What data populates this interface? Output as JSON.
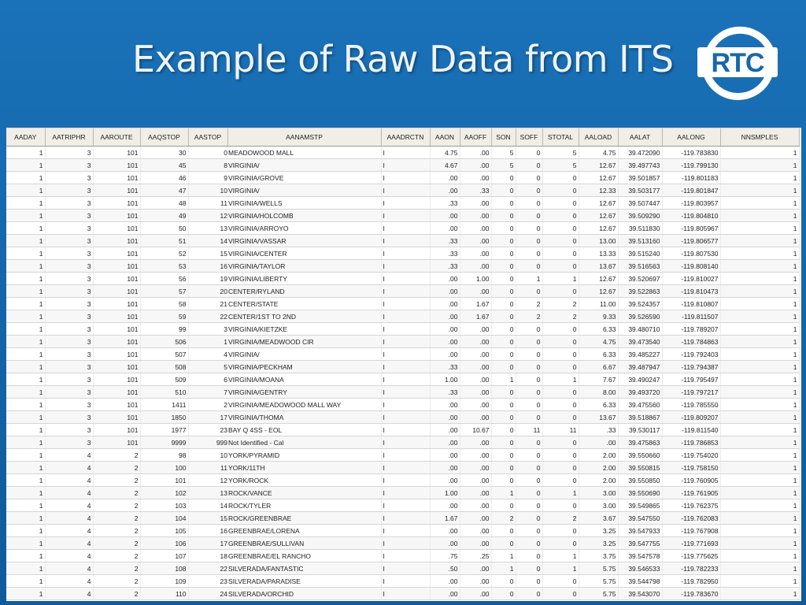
{
  "slide": {
    "title": "Example of Raw Data from ITS",
    "logo_text": "RTC",
    "colors": {
      "background": "#1668ad",
      "title_text": "#eef3f8",
      "header_fill": "#f0eee6",
      "logo": "#ffffff"
    }
  },
  "table": {
    "columns": [
      "AADAY",
      "AATRIPHR",
      "AAROUTE",
      "AAQSTOP",
      "AASTOP",
      "AANAMSTP",
      "AAADRCTN",
      "AAON",
      "AAOFF",
      "SON",
      "SOFF",
      "STOTAL",
      "AALOAD",
      "AALAT",
      "AALONG",
      "NNSMPLES"
    ],
    "rows": [
      [
        "1",
        "3",
        "101",
        "30",
        "0",
        "MEADOWOOD MALL",
        "I",
        "4.75",
        ".00",
        "5",
        "0",
        "5",
        "4.75",
        "39.472090",
        "-119.783830",
        "1"
      ],
      [
        "1",
        "3",
        "101",
        "45",
        "8",
        "VIRGINIA/",
        "I",
        "4.67",
        ".00",
        "5",
        "0",
        "5",
        "12.67",
        "39.497743",
        "-119.799130",
        "1"
      ],
      [
        "1",
        "3",
        "101",
        "46",
        "9",
        "VIRGINIA/GROVE",
        "I",
        ".00",
        ".00",
        "0",
        "0",
        "0",
        "12.67",
        "39.501857",
        "-119.801183",
        "1"
      ],
      [
        "1",
        "3",
        "101",
        "47",
        "10",
        "VIRGINIA/",
        "I",
        ".00",
        ".33",
        "0",
        "0",
        "0",
        "12.33",
        "39.503177",
        "-119.801847",
        "1"
      ],
      [
        "1",
        "3",
        "101",
        "48",
        "11",
        "VIRGINIA/WELLS",
        "I",
        ".33",
        ".00",
        "0",
        "0",
        "0",
        "12.67",
        "39.507447",
        "-119.803957",
        "1"
      ],
      [
        "1",
        "3",
        "101",
        "49",
        "12",
        "VIRGINIA/HOLCOMB",
        "I",
        ".00",
        ".00",
        "0",
        "0",
        "0",
        "12.67",
        "39.509290",
        "-119.804810",
        "1"
      ],
      [
        "1",
        "3",
        "101",
        "50",
        "13",
        "VIRGINIA/ARROYO",
        "I",
        ".00",
        ".00",
        "0",
        "0",
        "0",
        "12.67",
        "39.511830",
        "-119.805967",
        "1"
      ],
      [
        "1",
        "3",
        "101",
        "51",
        "14",
        "VIRGINIA/VASSAR",
        "I",
        ".33",
        ".00",
        "0",
        "0",
        "0",
        "13.00",
        "39.513160",
        "-119.806577",
        "1"
      ],
      [
        "1",
        "3",
        "101",
        "52",
        "15",
        "VIRGINIA/CENTER",
        "I",
        ".33",
        ".00",
        "0",
        "0",
        "0",
        "13.33",
        "39.515240",
        "-119.807530",
        "1"
      ],
      [
        "1",
        "3",
        "101",
        "53",
        "16",
        "VIRGINIA/TAYLOR",
        "I",
        ".33",
        ".00",
        "0",
        "0",
        "0",
        "13.67",
        "39.516563",
        "-119.808140",
        "1"
      ],
      [
        "1",
        "3",
        "101",
        "56",
        "19",
        "VIRGINIA/LIBERTY",
        "I",
        ".00",
        "1.00",
        "0",
        "1",
        "1",
        "12.67",
        "39.520697",
        "-119.810027",
        "1"
      ],
      [
        "1",
        "3",
        "101",
        "57",
        "20",
        "CENTER/RYLAND",
        "I",
        ".00",
        ".00",
        "0",
        "0",
        "0",
        "12.67",
        "39.522863",
        "-119.810473",
        "1"
      ],
      [
        "1",
        "3",
        "101",
        "58",
        "21",
        "CENTER/STATE",
        "I",
        ".00",
        "1.67",
        "0",
        "2",
        "2",
        "11.00",
        "39.524357",
        "-119.810807",
        "1"
      ],
      [
        "1",
        "3",
        "101",
        "59",
        "22",
        "CENTER/1ST TO 2ND",
        "I",
        ".00",
        "1.67",
        "0",
        "2",
        "2",
        "9.33",
        "39.526590",
        "-119.811507",
        "1"
      ],
      [
        "1",
        "3",
        "101",
        "99",
        "3",
        "VIRGINIA/KIETZKE",
        "I",
        ".00",
        ".00",
        "0",
        "0",
        "0",
        "6.33",
        "39.480710",
        "-119.789207",
        "1"
      ],
      [
        "1",
        "3",
        "101",
        "506",
        "1",
        "VIRGINIA/MEADWOOD CIR",
        "I",
        ".00",
        ".00",
        "0",
        "0",
        "0",
        "4.75",
        "39.473540",
        "-119.784863",
        "1"
      ],
      [
        "1",
        "3",
        "101",
        "507",
        "4",
        "VIRGINIA/",
        "I",
        ".00",
        ".00",
        "0",
        "0",
        "0",
        "6.33",
        "39.485227",
        "-119.792403",
        "1"
      ],
      [
        "1",
        "3",
        "101",
        "508",
        "5",
        "VIRGINIA/PECKHAM",
        "I",
        ".33",
        ".00",
        "0",
        "0",
        "0",
        "6.67",
        "39.487947",
        "-119.794387",
        "1"
      ],
      [
        "1",
        "3",
        "101",
        "509",
        "6",
        "VIRGINIA/MOANA",
        "I",
        "1.00",
        ".00",
        "1",
        "0",
        "1",
        "7.67",
        "39.490247",
        "-119.795497",
        "1"
      ],
      [
        "1",
        "3",
        "101",
        "510",
        "7",
        "VIRGINIA/GENTRY",
        "I",
        ".33",
        ".00",
        "0",
        "0",
        "0",
        "8.00",
        "39.493720",
        "-119.797217",
        "1"
      ],
      [
        "1",
        "3",
        "101",
        "1411",
        "2",
        "VIRGINIA/MEADOWOOD MALL WAY",
        "I",
        ".00",
        ".00",
        "0",
        "0",
        "0",
        "6.33",
        "39.475560",
        "-119.785550",
        "1"
      ],
      [
        "1",
        "3",
        "101",
        "1850",
        "17",
        "VIRGINIA/THOMA",
        "I",
        ".00",
        ".00",
        "0",
        "0",
        "0",
        "13.67",
        "39.518867",
        "-119.809207",
        "1"
      ],
      [
        "1",
        "3",
        "101",
        "1977",
        "23",
        "BAY Q 4SS  - EOL",
        "I",
        ".00",
        "10.67",
        "0",
        "11",
        "11",
        ".33",
        "39.530117",
        "-119.811540",
        "1"
      ],
      [
        "1",
        "3",
        "101",
        "9999",
        "999",
        "Not Identified - Cal",
        "I",
        ".00",
        ".00",
        "0",
        "0",
        "0",
        ".00",
        "39.475863",
        "-119.786853",
        "1"
      ],
      [
        "1",
        "4",
        "2",
        "98",
        "10",
        "YORK/PYRAMID",
        "I",
        ".00",
        ".00",
        "0",
        "0",
        "0",
        "2.00",
        "39.550660",
        "-119.754020",
        "1"
      ],
      [
        "1",
        "4",
        "2",
        "100",
        "11",
        "YORK/11TH",
        "I",
        ".00",
        ".00",
        "0",
        "0",
        "0",
        "2.00",
        "39.550815",
        "-119.758150",
        "1"
      ],
      [
        "1",
        "4",
        "2",
        "101",
        "12",
        "YORK/ROCK",
        "I",
        ".00",
        ".00",
        "0",
        "0",
        "0",
        "2.00",
        "39.550850",
        "-119.760905",
        "1"
      ],
      [
        "1",
        "4",
        "2",
        "102",
        "13",
        "ROCK/VANCE",
        "I",
        "1.00",
        ".00",
        "1",
        "0",
        "1",
        "3.00",
        "39.550690",
        "-119.761905",
        "1"
      ],
      [
        "1",
        "4",
        "2",
        "103",
        "14",
        "ROCK/TYLER",
        "I",
        ".00",
        ".00",
        "0",
        "0",
        "0",
        "3.00",
        "39.549865",
        "-119.762375",
        "1"
      ],
      [
        "1",
        "4",
        "2",
        "104",
        "15",
        "ROCK/GREENBRAE",
        "I",
        "1.67",
        ".00",
        "2",
        "0",
        "2",
        "3.67",
        "39.547550",
        "-119.762083",
        "1"
      ],
      [
        "1",
        "4",
        "2",
        "105",
        "16",
        "GREENBRAE/LORENA",
        "I",
        ".00",
        ".00",
        "0",
        "0",
        "0",
        "3.25",
        "39.547933",
        "-119.767908",
        "1"
      ],
      [
        "1",
        "4",
        "2",
        "106",
        "17",
        "GREENBRAE/SULLIVAN",
        "I",
        ".00",
        ".00",
        "0",
        "0",
        "0",
        "3.25",
        "39.547755",
        "-119.771693",
        "1"
      ],
      [
        "1",
        "4",
        "2",
        "107",
        "18",
        "GREENBRAE/EL RANCHO",
        "I",
        ".75",
        ".25",
        "1",
        "0",
        "1",
        "3.75",
        "39.547578",
        "-119.775625",
        "1"
      ],
      [
        "1",
        "4",
        "2",
        "108",
        "22",
        "SILVERADA/FANTASTIC",
        "I",
        ".50",
        ".00",
        "1",
        "0",
        "1",
        "5.75",
        "39.546533",
        "-119.782233",
        "1"
      ],
      [
        "1",
        "4",
        "2",
        "109",
        "23",
        "SILVERADA/PARADISE",
        "I",
        ".00",
        ".00",
        "0",
        "0",
        "0",
        "5.75",
        "39.544798",
        "-119.782950",
        "1"
      ],
      [
        "1",
        "4",
        "2",
        "110",
        "24",
        "SILVERADA/ORCHID",
        "I",
        ".00",
        ".00",
        "0",
        "0",
        "0",
        "5.75",
        "39.543070",
        "-119.783670",
        "1"
      ]
    ]
  }
}
